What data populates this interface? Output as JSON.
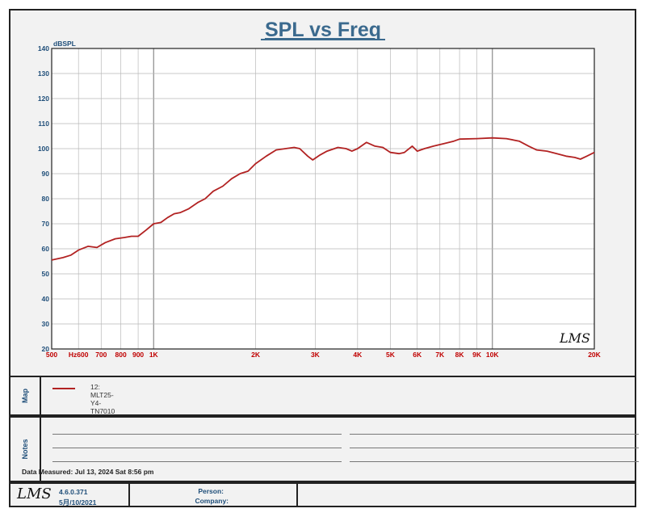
{
  "chart_data": {
    "type": "line",
    "title": "SPL vs Freq",
    "ylabel": "dBSPL",
    "xscale": "log",
    "xlim": [
      500,
      20000
    ],
    "ylim": [
      20,
      140
    ],
    "grid": true,
    "y_ticks": [
      20,
      30,
      40,
      50,
      60,
      70,
      80,
      90,
      100,
      110,
      120,
      130,
      140
    ],
    "x_ticks": [
      {
        "value": 500,
        "label": "500"
      },
      {
        "value": 600,
        "label": "Hz600"
      },
      {
        "value": 700,
        "label": "700"
      },
      {
        "value": 800,
        "label": "800"
      },
      {
        "value": 900,
        "label": "900"
      },
      {
        "value": 1000,
        "label": "1K"
      },
      {
        "value": 2000,
        "label": "2K"
      },
      {
        "value": 3000,
        "label": "3K"
      },
      {
        "value": 4000,
        "label": "4K"
      },
      {
        "value": 5000,
        "label": "5K"
      },
      {
        "value": 6000,
        "label": "6K"
      },
      {
        "value": 7000,
        "label": "7K"
      },
      {
        "value": 8000,
        "label": "8K"
      },
      {
        "value": 9000,
        "label": "9K"
      },
      {
        "value": 10000,
        "label": "10K"
      },
      {
        "value": 20000,
        "label": "20K"
      }
    ],
    "series": [
      {
        "name": "12: MLT25-Y4-TN7010",
        "color": "#b22222",
        "points": [
          [
            500,
            55.5
          ],
          [
            540,
            56.5
          ],
          [
            570,
            57.5
          ],
          [
            600,
            59.5
          ],
          [
            640,
            61
          ],
          [
            680,
            60.5
          ],
          [
            720,
            62.5
          ],
          [
            770,
            64
          ],
          [
            820,
            64.5
          ],
          [
            860,
            65
          ],
          [
            900,
            65
          ],
          [
            950,
            67.5
          ],
          [
            1000,
            70
          ],
          [
            1050,
            70.5
          ],
          [
            1100,
            72.5
          ],
          [
            1150,
            74
          ],
          [
            1200,
            74.5
          ],
          [
            1270,
            76
          ],
          [
            1350,
            78.5
          ],
          [
            1420,
            80
          ],
          [
            1500,
            83
          ],
          [
            1600,
            85
          ],
          [
            1700,
            88
          ],
          [
            1800,
            90
          ],
          [
            1900,
            91
          ],
          [
            2000,
            94
          ],
          [
            2150,
            97
          ],
          [
            2300,
            99.5
          ],
          [
            2450,
            100
          ],
          [
            2600,
            100.5
          ],
          [
            2700,
            100
          ],
          [
            2850,
            97
          ],
          [
            2950,
            95.5
          ],
          [
            3100,
            97.5
          ],
          [
            3250,
            99
          ],
          [
            3500,
            100.5
          ],
          [
            3700,
            100
          ],
          [
            3850,
            99
          ],
          [
            4000,
            100
          ],
          [
            4250,
            102.5
          ],
          [
            4500,
            101
          ],
          [
            4750,
            100.5
          ],
          [
            5000,
            98.5
          ],
          [
            5300,
            98
          ],
          [
            5500,
            98.5
          ],
          [
            5800,
            101
          ],
          [
            6000,
            99
          ],
          [
            6300,
            100
          ],
          [
            6700,
            101
          ],
          [
            7200,
            102
          ],
          [
            7700,
            103
          ],
          [
            8000,
            103.8
          ],
          [
            9000,
            104
          ],
          [
            10000,
            104.3
          ],
          [
            11000,
            104
          ],
          [
            12000,
            103
          ],
          [
            12800,
            101
          ],
          [
            13500,
            99.5
          ],
          [
            14500,
            99
          ],
          [
            15500,
            98
          ],
          [
            16500,
            97
          ],
          [
            17500,
            96.5
          ],
          [
            18200,
            95.8
          ],
          [
            19000,
            97
          ],
          [
            20000,
            98.5
          ]
        ]
      }
    ]
  },
  "legend": {
    "entry": "12: MLT25-Y4-TN7010",
    "color": "#b22222"
  },
  "sections": {
    "map": "Map",
    "notes": "Notes"
  },
  "notes": {
    "measured": "Data Measured: Jul 13, 2024  Sat  8:56 pm"
  },
  "footer": {
    "logo": "LMS",
    "version": "4.6.0.371",
    "date": "5月/10/2021",
    "person_label": "Person:",
    "company_label": "Company:"
  },
  "watermark": "LMS"
}
